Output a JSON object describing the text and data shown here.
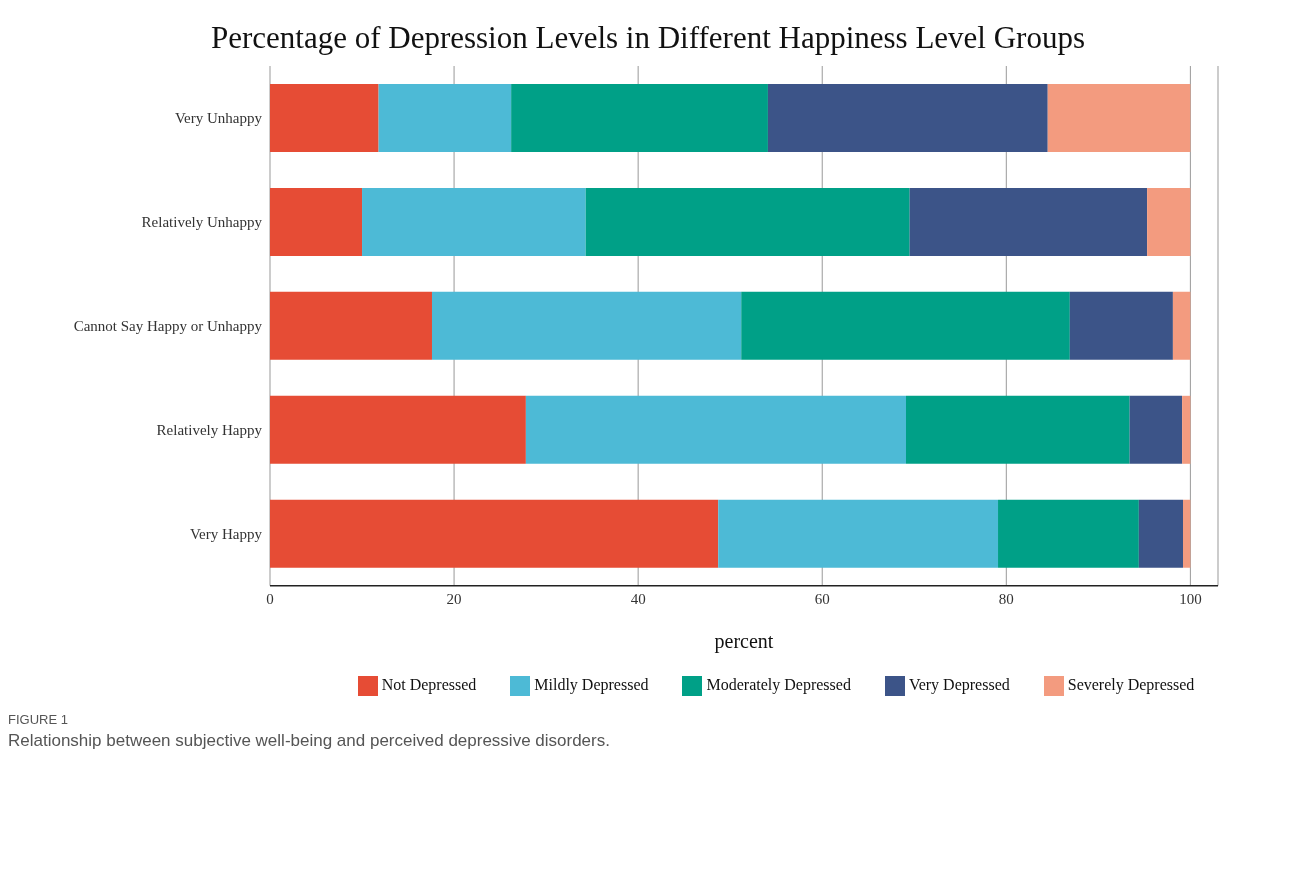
{
  "chart_data": {
    "type": "bar",
    "orientation": "horizontal",
    "stacked": true,
    "title": "Percentage of Depression Levels in Different Happiness Level Groups",
    "xlabel": "percent",
    "categories": [
      "Very Unhappy",
      "Relatively Unhappy",
      "Cannot Say Happy or Unhappy",
      "Relatively Happy",
      "Very Happy"
    ],
    "series": [
      {
        "name": "Not Depressed",
        "color": "#e64c35",
        "values": [
          11.8,
          10.0,
          17.6,
          27.8,
          48.7
        ]
      },
      {
        "name": "Mildly Depressed",
        "color": "#4dbad6",
        "values": [
          14.4,
          24.3,
          33.6,
          41.3,
          30.4
        ]
      },
      {
        "name": "Moderately Depressed",
        "color": "#00a087",
        "values": [
          27.9,
          35.2,
          35.7,
          24.3,
          15.3
        ]
      },
      {
        "name": "Very Depressed",
        "color": "#3c5488",
        "values": [
          30.4,
          25.8,
          11.2,
          5.7,
          4.8
        ]
      },
      {
        "name": "Severely Depressed",
        "color": "#f39b7f",
        "values": [
          15.5,
          4.7,
          1.9,
          0.9,
          0.8
        ]
      }
    ],
    "xlim": [
      0,
      103
    ],
    "xticks": [
      0,
      20,
      40,
      60,
      80,
      100
    ],
    "grid": "x",
    "legend": "bottom",
    "annotations": [
      "FIGURE 1",
      "Relationship between subjective well-being and perceived depressive disorders."
    ]
  }
}
